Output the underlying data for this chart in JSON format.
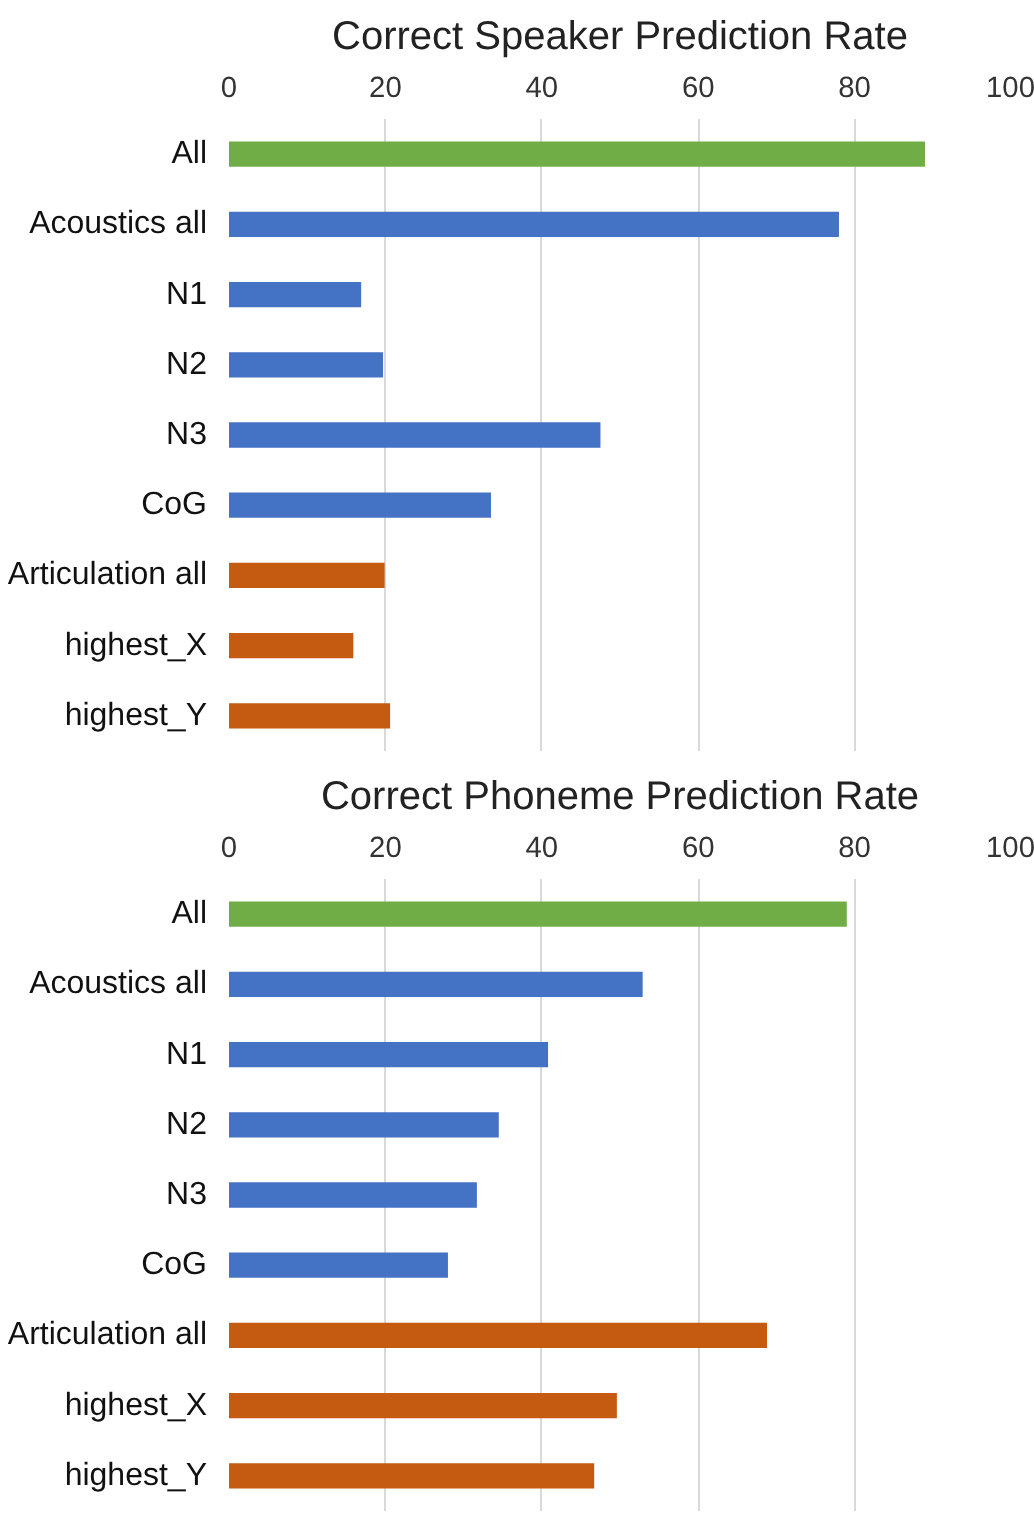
{
  "chart_data": [
    {
      "type": "bar",
      "orientation": "horizontal",
      "title": "Correct Speaker Prediction Rate",
      "categories": [
        "All",
        "Acoustics all",
        "N1",
        "N2",
        "N3",
        "CoG",
        "Articulation all",
        "highest_X",
        "highest_Y"
      ],
      "values": [
        89.0,
        78.0,
        16.9,
        19.7,
        47.5,
        33.5,
        19.9,
        15.9,
        20.6
      ],
      "colors": [
        "#70ad47",
        "#4472c4",
        "#4472c4",
        "#4472c4",
        "#4472c4",
        "#4472c4",
        "#c55a11",
        "#c55a11",
        "#c55a11"
      ],
      "xlim": [
        0,
        100
      ],
      "xticks": [
        0,
        20,
        40,
        60,
        80,
        100
      ],
      "grid": "x"
    },
    {
      "type": "bar",
      "orientation": "horizontal",
      "title": "Correct Phoneme Prediction Rate",
      "categories": [
        "All",
        "Acoustics all",
        "N1",
        "N2",
        "N3",
        "CoG",
        "Articulation all",
        "highest_X",
        "highest_Y"
      ],
      "values": [
        79.0,
        52.9,
        40.8,
        34.5,
        31.7,
        28.0,
        68.8,
        49.6,
        46.7
      ],
      "colors": [
        "#70ad47",
        "#4472c4",
        "#4472c4",
        "#4472c4",
        "#4472c4",
        "#4472c4",
        "#c55a11",
        "#c55a11",
        "#c55a11"
      ],
      "xlim": [
        0,
        100
      ],
      "xticks": [
        0,
        20,
        40,
        60,
        80,
        100
      ],
      "grid": "x"
    }
  ]
}
